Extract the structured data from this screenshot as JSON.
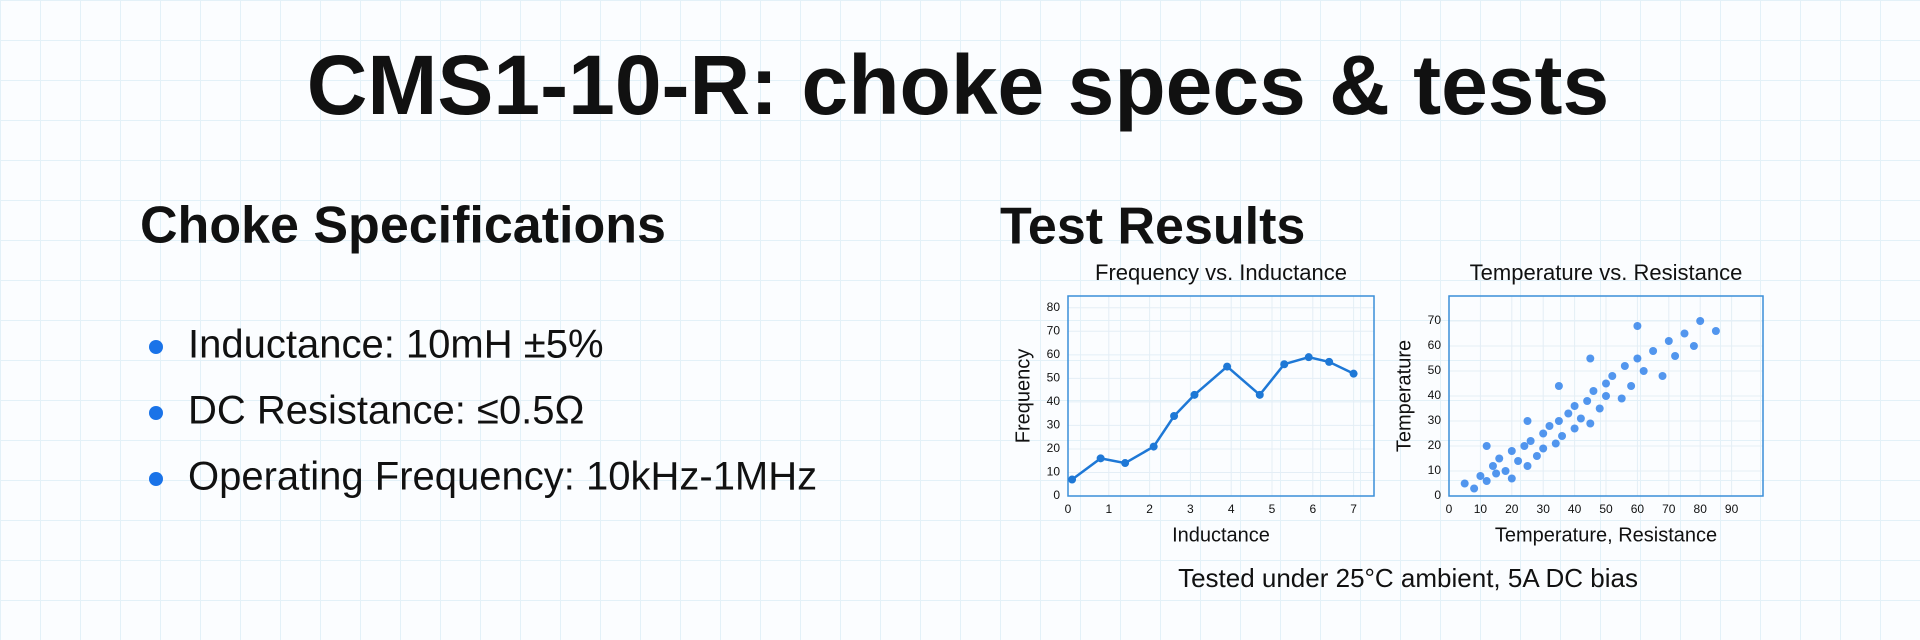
{
  "title": "CMS1-10-R: choke specs & tests",
  "specs": {
    "heading": "Choke Specifications",
    "items": [
      "Inductance: 10mH ±5%",
      "DC Resistance: ≤0.5Ω",
      "Operating Frequency: 10kHz-1MHz"
    ]
  },
  "tests": {
    "heading": "Test Results",
    "caption": "Tested under 25°C ambient, 5A DC bias"
  },
  "chart_data": [
    {
      "type": "line",
      "title": "Frequency vs. Inductance",
      "xlabel": "Inductance",
      "ylabel": "Frequency",
      "color": "#1e78d6",
      "grid": true,
      "x": [
        0.1,
        0.8,
        1.4,
        2.1,
        2.6,
        3.1,
        3.9,
        4.7,
        5.3,
        5.9,
        6.4,
        7.0
      ],
      "values": [
        7,
        16,
        14,
        21,
        34,
        43,
        55,
        43,
        56,
        59,
        57,
        52
      ],
      "xlim": [
        0,
        7.5
      ],
      "xticks": [
        0,
        1,
        2,
        3,
        4,
        5,
        6,
        7
      ],
      "ylim": [
        0,
        85
      ],
      "yticks": [
        0,
        10,
        20,
        30,
        40,
        50,
        60,
        70,
        80
      ]
    },
    {
      "type": "scatter",
      "title": "Temperature vs. Resistance",
      "xlabel": "Temperature, Resistance",
      "ylabel": "Temperature",
      "color": "#1a73e8",
      "grid": true,
      "x": [
        5,
        8,
        10,
        12,
        14,
        15,
        16,
        18,
        20,
        20,
        22,
        24,
        25,
        26,
        28,
        30,
        30,
        32,
        34,
        35,
        36,
        38,
        40,
        40,
        42,
        44,
        45,
        46,
        48,
        50,
        50,
        52,
        55,
        56,
        58,
        60,
        62,
        65,
        68,
        70,
        72,
        75,
        78,
        80,
        85,
        12,
        25,
        35,
        45,
        60
      ],
      "values": [
        5,
        3,
        8,
        6,
        12,
        9,
        15,
        10,
        18,
        7,
        14,
        20,
        12,
        22,
        16,
        25,
        19,
        28,
        21,
        30,
        24,
        33,
        27,
        36,
        31,
        38,
        29,
        42,
        35,
        45,
        40,
        48,
        39,
        52,
        44,
        55,
        50,
        58,
        48,
        62,
        56,
        65,
        60,
        70,
        66,
        20,
        30,
        44,
        55,
        68
      ],
      "xlim": [
        0,
        100
      ],
      "xticks": [
        0,
        10,
        20,
        30,
        40,
        50,
        60,
        70,
        80,
        90
      ],
      "ylim": [
        0,
        80
      ],
      "yticks": [
        0,
        10,
        20,
        30,
        40,
        50,
        60,
        70
      ]
    }
  ]
}
